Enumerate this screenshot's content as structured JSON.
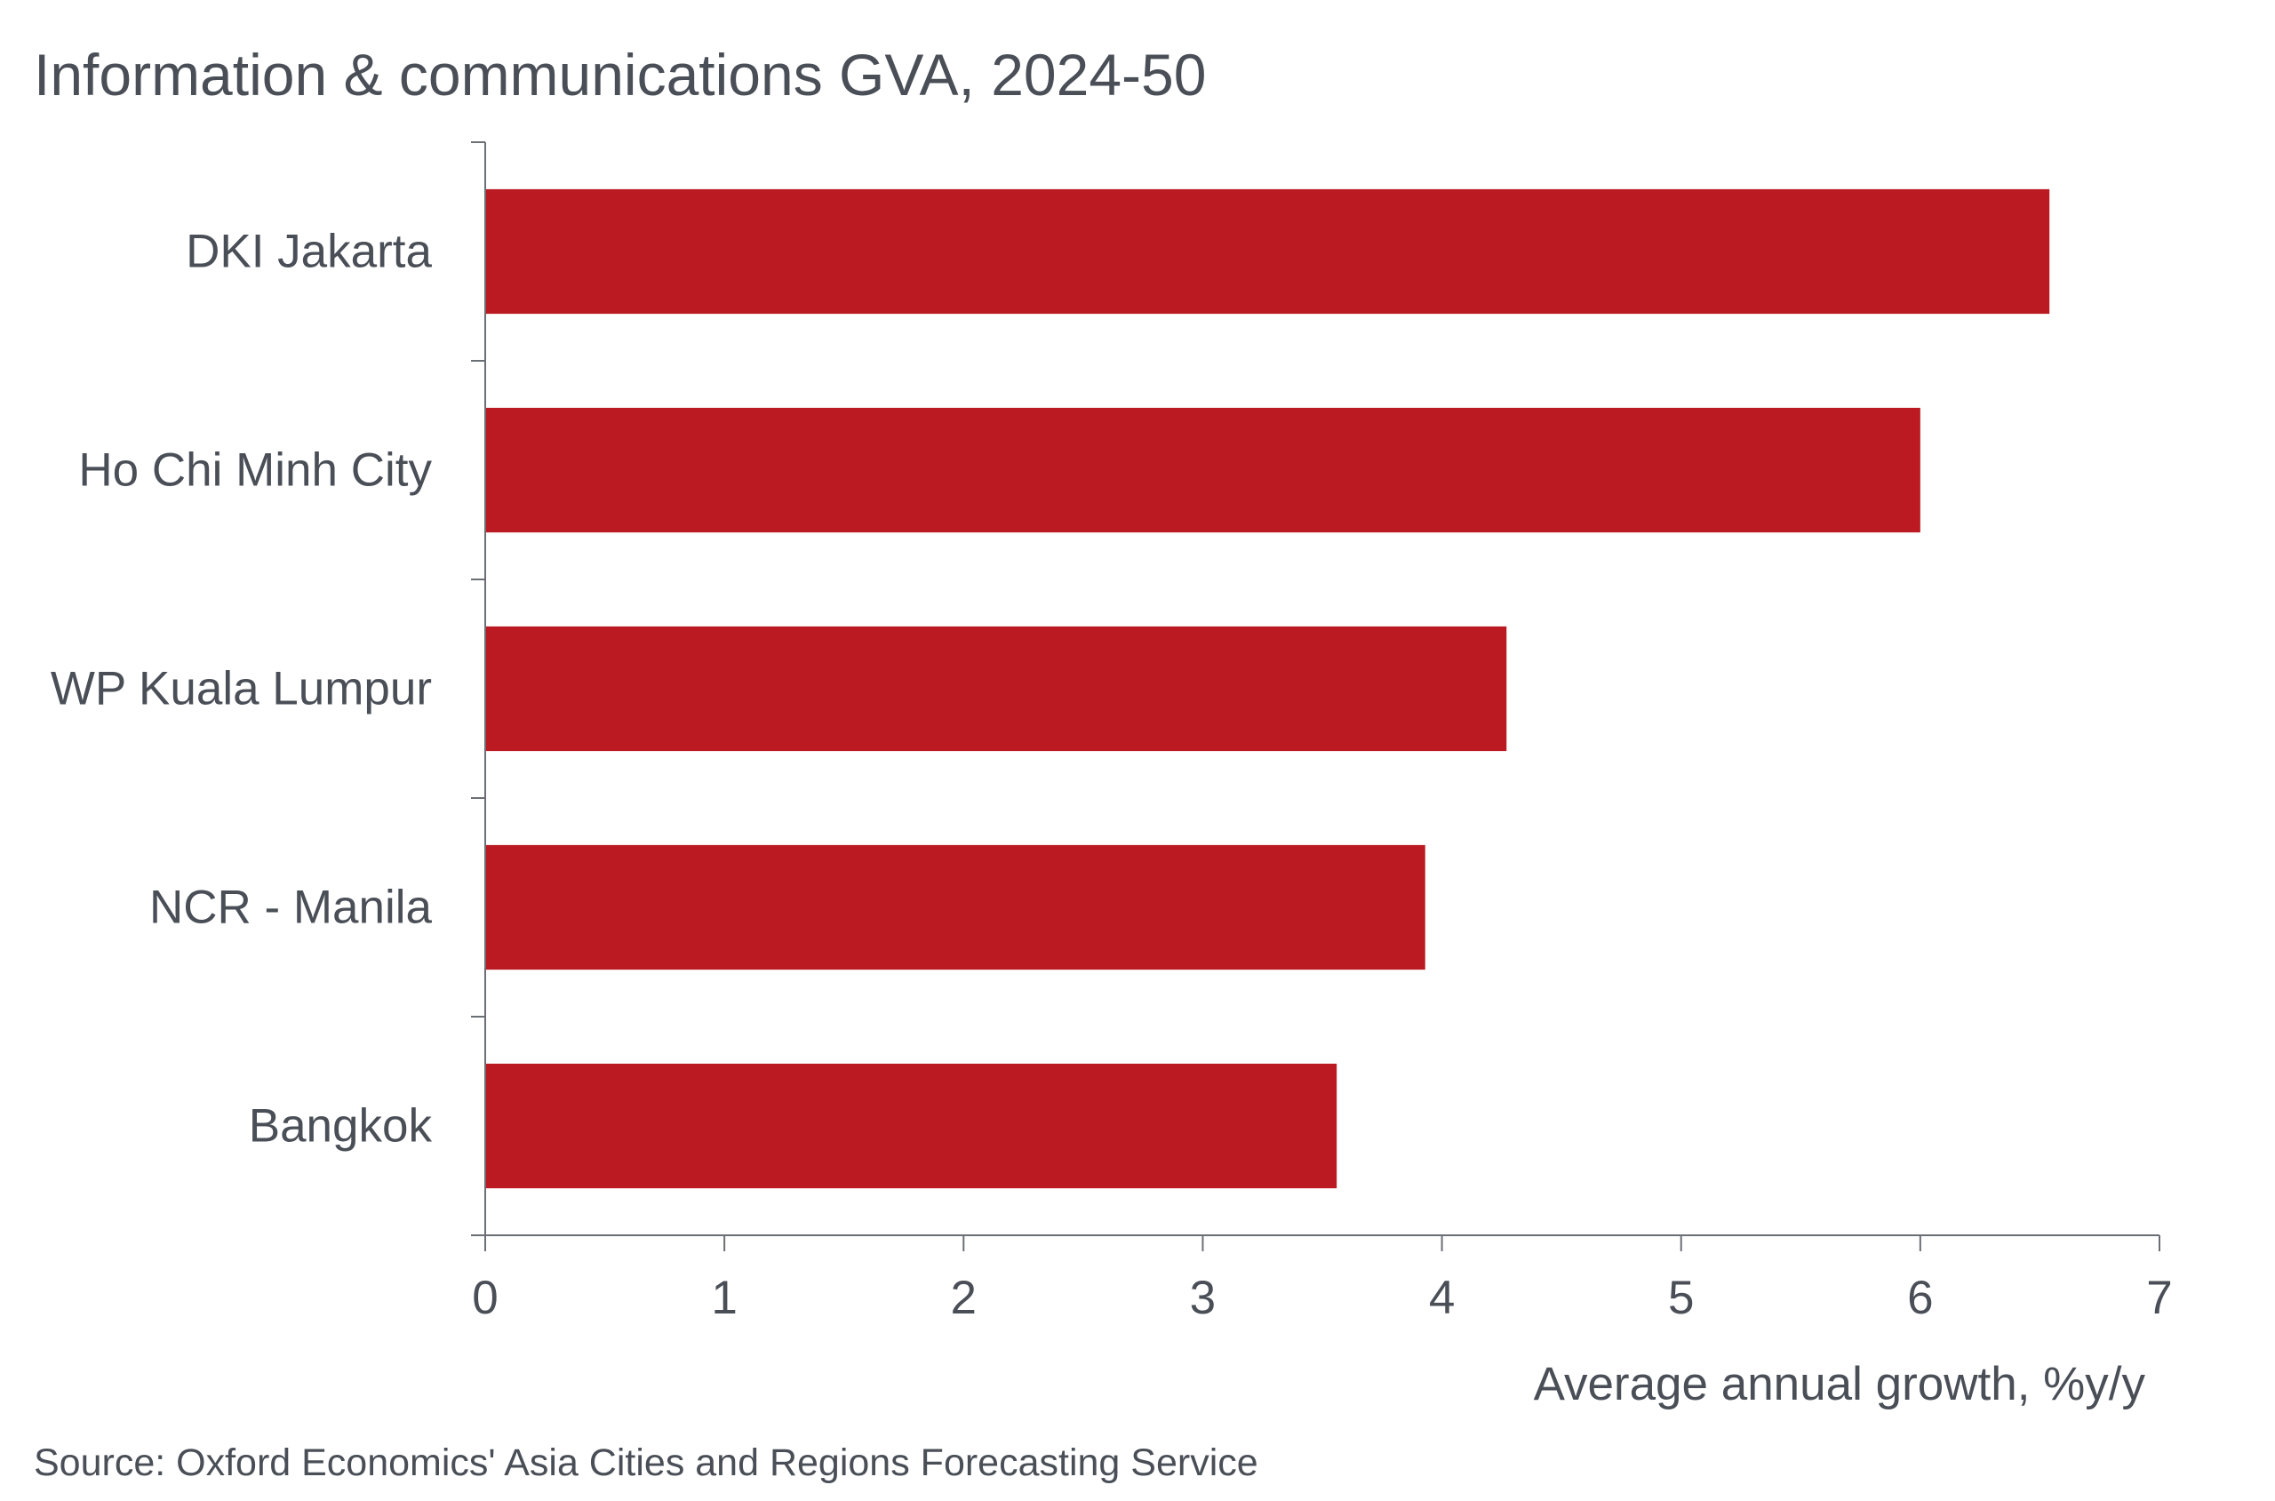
{
  "chart_data": {
    "type": "bar",
    "orientation": "horizontal",
    "title": "Information & communications GVA, 2024-50",
    "categories": [
      "DKI Jakarta",
      "Ho Chi Minh City",
      "WP Kuala Lumpur",
      "NCR - Manila",
      "Bangkok"
    ],
    "values": [
      6.54,
      6.0,
      4.27,
      3.93,
      3.56
    ],
    "xlabel": "Average annual growth, %y/y",
    "ylabel": "",
    "xlim": [
      0,
      7
    ],
    "x_ticks": [
      "0",
      "1",
      "2",
      "3",
      "4",
      "5",
      "6",
      "7"
    ],
    "bar_color": "#bb1a22",
    "grid": false,
    "legend": "none",
    "source": "Source: Oxford Economics' Asia Cities and Regions Forecasting Service"
  }
}
